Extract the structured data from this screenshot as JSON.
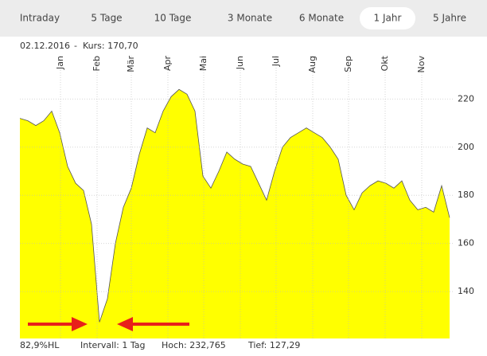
{
  "tabs": {
    "items": [
      "Intraday",
      "5 Tage",
      "10 Tage",
      "3 Monate",
      "6 Monate",
      "1 Jahr",
      "5 Jahre"
    ],
    "selected": 5
  },
  "header": {
    "date": "02.12.2016",
    "separator": "-",
    "quote": "Kurs: 170,70"
  },
  "footer": {
    "range": "82,9%HL",
    "interval": "Intervall: 1 Tag",
    "high": "Hoch: 232,765",
    "low": "Tief: 127,29"
  },
  "chart_data": {
    "type": "area",
    "color": "#ffff00",
    "line_color": "#555555",
    "grid": true,
    "values": [
      212,
      211,
      209,
      211,
      215,
      206,
      192,
      185,
      182,
      168,
      127.3,
      137,
      160,
      175,
      183,
      197,
      208,
      206,
      215,
      221,
      224,
      222,
      215,
      188,
      183,
      190,
      198,
      195,
      193,
      192,
      185,
      178,
      190,
      200,
      204,
      206,
      208,
      206,
      204,
      200,
      195,
      180,
      174,
      181,
      184,
      186,
      185,
      183,
      186,
      178,
      174,
      175,
      173,
      184,
      170.7
    ],
    "xlim": [
      0,
      54.5
    ],
    "xticks": [
      {
        "value": 5.1,
        "label": "Jan"
      },
      {
        "value": 9.7,
        "label": "Feb"
      },
      {
        "value": 14,
        "label": "Mär"
      },
      {
        "value": 18.6,
        "label": "Apr"
      },
      {
        "value": 23.1,
        "label": "Mai"
      },
      {
        "value": 27.7,
        "label": "Jun"
      },
      {
        "value": 32.2,
        "label": "Jul"
      },
      {
        "value": 36.8,
        "label": "Aug"
      },
      {
        "value": 41.3,
        "label": "Sep"
      },
      {
        "value": 45.9,
        "label": "Okt"
      },
      {
        "value": 50.5,
        "label": "Nov"
      }
    ],
    "ylim": [
      120.5,
      238
    ],
    "yticks": [
      140,
      160,
      180,
      200,
      220
    ]
  }
}
